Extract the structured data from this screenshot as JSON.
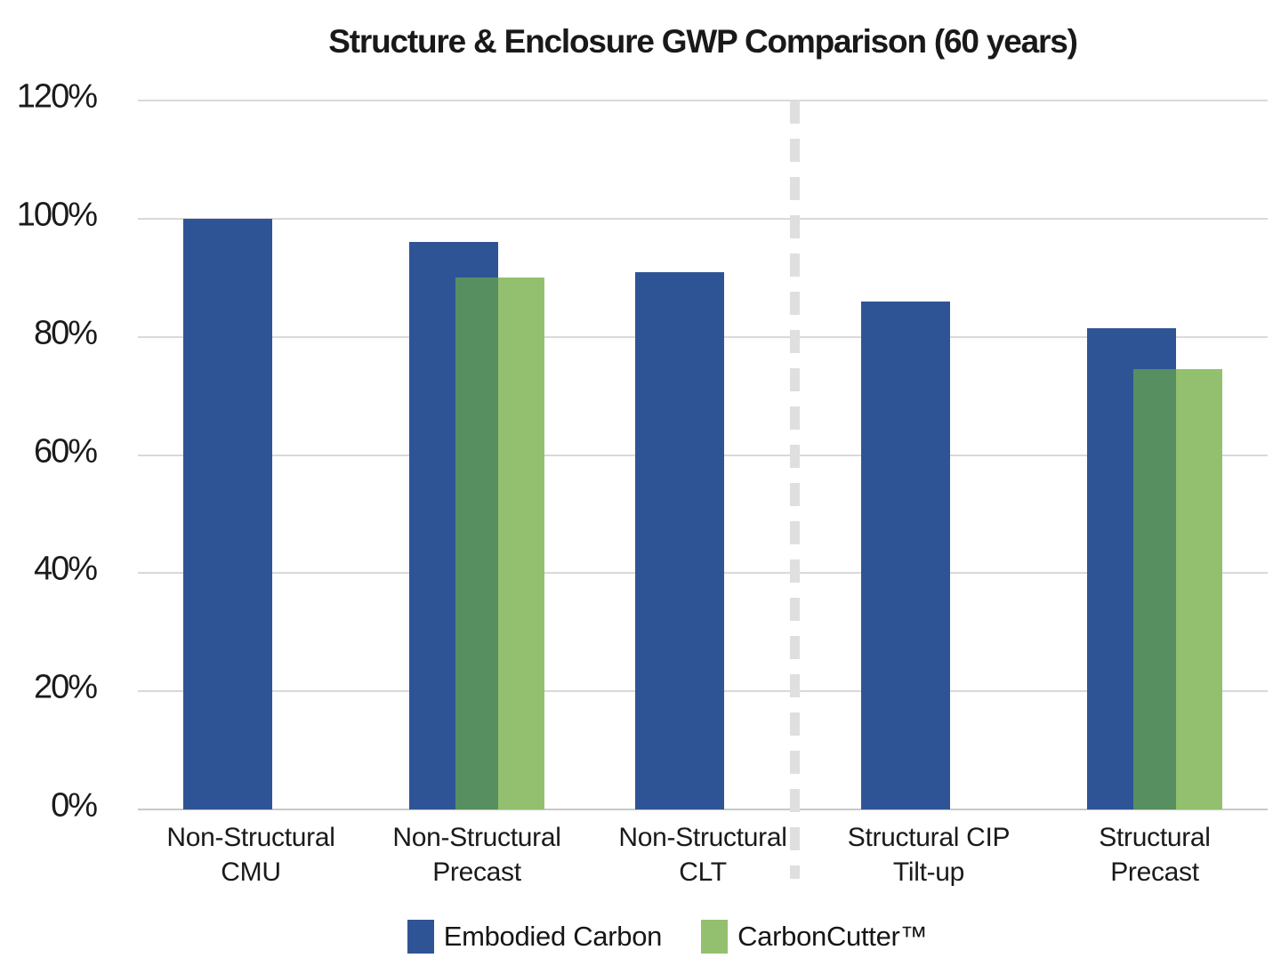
{
  "chart_data": {
    "type": "bar",
    "title": "Structure & Enclosure GWP Comparison (60 years)",
    "categories": [
      "Non-Structural CMU",
      "Non-Structural Precast",
      "Non-Structural CLT",
      "Structural CIP Tilt-up",
      "Structural Precast"
    ],
    "category_label_lines": [
      [
        "Non-Structural",
        "CMU"
      ],
      [
        "Non-Structural",
        "Precast"
      ],
      [
        "Non-Structural",
        "CLT"
      ],
      [
        "Structural CIP",
        "Tilt-up"
      ],
      [
        "Structural",
        "Precast"
      ]
    ],
    "series": [
      {
        "name": "Embodied Carbon",
        "color": "#2F5496",
        "values": [
          100,
          96,
          91,
          86,
          81.5
        ]
      },
      {
        "name": "CarbonCutter™",
        "color": "#93C06F",
        "overlap_color": "#578F60",
        "values": [
          null,
          90,
          null,
          null,
          74.5
        ]
      }
    ],
    "unit": "%",
    "ylim": [
      0,
      120
    ],
    "ytick_step": 20,
    "ytick_labels": [
      "0%",
      "20%",
      "40%",
      "60%",
      "80%",
      "100%",
      "120%"
    ],
    "grid": true,
    "gridline_color": "#D9D9D9",
    "axis_line_color": "#C8C8C8",
    "separator": {
      "after_category": "Non-Structural CLT",
      "style": "dashed",
      "color": "#DFDFDF"
    },
    "legend_position": "bottom",
    "legend": [
      {
        "label": "Embodied Carbon",
        "color": "#2F5496"
      },
      {
        "label": "CarbonCutter™",
        "color": "#93C06F"
      }
    ]
  }
}
